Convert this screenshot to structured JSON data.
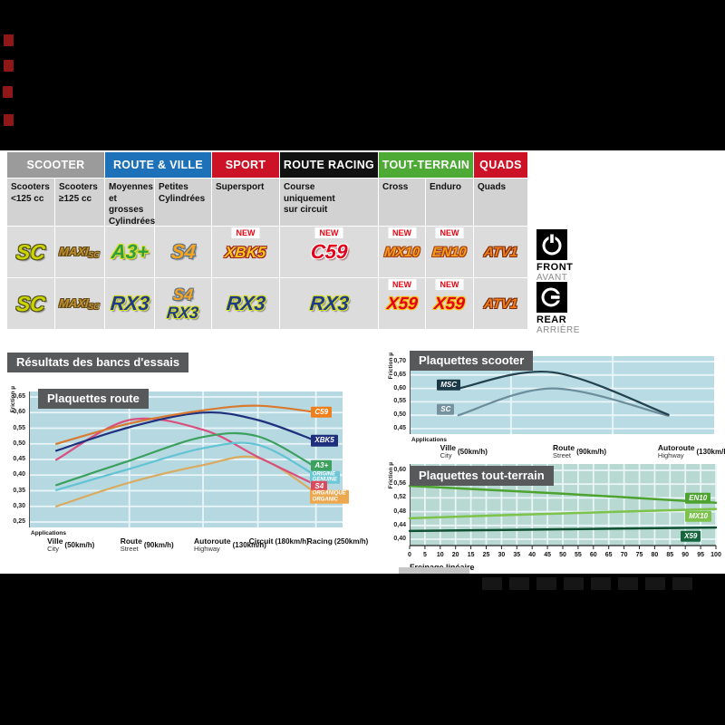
{
  "new_badge": "NEW",
  "section_title": "Résultats des bancs d'essais",
  "front_rear": {
    "front": "FRONT",
    "front_fr": "AVANT",
    "rear": "REAR",
    "rear_fr": "ARRIÈRE"
  },
  "table": {
    "groups": [
      {
        "label": "SCOOTER",
        "color": "#9b9b9b",
        "span": 2
      },
      {
        "label": "ROUTE & VILLE",
        "color": "#1d71b8",
        "span": 2
      },
      {
        "label": "SPORT",
        "color": "#cc1226",
        "span": 1
      },
      {
        "label": "ROUTE RACING",
        "color": "#111111",
        "span": 1
      },
      {
        "label": "TOUT-TERRAIN",
        "color": "#4caa35",
        "span": 2
      },
      {
        "label": "QUADS",
        "color": "#cc1226",
        "span": 1
      }
    ],
    "subheaders": [
      [
        "Scooters",
        "<125 cc"
      ],
      [
        "Scooters",
        "≥125 cc"
      ],
      [
        "Moyennes",
        "et grosses",
        "Cylindrées"
      ],
      [
        "Petites",
        "Cylindrées"
      ],
      [
        "Supersport"
      ],
      [
        "Course",
        "uniquement",
        "sur circuit"
      ],
      [
        "Cross"
      ],
      [
        "Enduro"
      ],
      [
        "Quads"
      ]
    ],
    "rows": [
      {
        "side": "front",
        "cells": [
          {
            "new": false,
            "products": [
              {
                "label": "SC",
                "style": "sc"
              }
            ]
          },
          {
            "new": false,
            "products": [
              {
                "label": "MAXI-SC",
                "style": "maxisc"
              }
            ]
          },
          {
            "new": false,
            "products": [
              {
                "label": "A3+",
                "style": "a3"
              }
            ]
          },
          {
            "new": false,
            "products": [
              {
                "label": "S4",
                "style": "s4"
              }
            ]
          },
          {
            "new": true,
            "products": [
              {
                "label": "XBK5",
                "style": "xbk5"
              }
            ]
          },
          {
            "new": true,
            "products": [
              {
                "label": "C59",
                "style": "c59"
              }
            ]
          },
          {
            "new": true,
            "products": [
              {
                "label": "MX10",
                "style": "mx10"
              }
            ]
          },
          {
            "new": true,
            "products": [
              {
                "label": "EN10",
                "style": "en10"
              }
            ]
          },
          {
            "new": false,
            "products": [
              {
                "label": "ATV1",
                "style": "atv1"
              }
            ]
          }
        ]
      },
      {
        "side": "rear",
        "cells": [
          {
            "new": false,
            "products": [
              {
                "label": "SC",
                "style": "sc"
              }
            ]
          },
          {
            "new": false,
            "products": [
              {
                "label": "MAXI-SC",
                "style": "maxisc"
              }
            ]
          },
          {
            "new": false,
            "products": [
              {
                "label": "RX3",
                "style": "rx3"
              }
            ]
          },
          {
            "new": false,
            "products": [
              {
                "label": "S4",
                "style": "s4"
              },
              {
                "label": "RX3",
                "style": "rx3"
              }
            ]
          },
          {
            "new": false,
            "products": [
              {
                "label": "RX3",
                "style": "rx3"
              }
            ]
          },
          {
            "new": false,
            "products": [
              {
                "label": "RX3",
                "style": "rx3"
              }
            ]
          },
          {
            "new": true,
            "products": [
              {
                "label": "X59",
                "style": "x59"
              }
            ]
          },
          {
            "new": true,
            "products": [
              {
                "label": "X59",
                "style": "x59"
              }
            ]
          },
          {
            "new": false,
            "products": [
              {
                "label": "ATV1",
                "style": "atv1"
              }
            ]
          }
        ]
      }
    ]
  },
  "chart_data": [
    {
      "type": "line",
      "title": "Plaquettes route",
      "ylabel": "Friction µ",
      "xlabel_caption": "Applications",
      "bg": "#b6d9e1",
      "ylim": [
        0.25,
        0.65
      ],
      "ytick_labels": [
        "0,65",
        "0,60",
        "0,55",
        "0,50",
        "0,45",
        "0,40",
        "0,35",
        "0,30",
        "0,25"
      ],
      "vgrid_x": [
        0.32,
        0.555,
        0.73,
        0.915
      ],
      "x_categories": [
        {
          "fr": "Ville",
          "en": "City",
          "speed": "(50km/h)",
          "x": 0.087
        },
        {
          "fr": "Route",
          "en": "Street",
          "speed": "(90km/h)",
          "x": 0.32
        },
        {
          "fr": "Autoroute",
          "en": "Highway",
          "speed": "(130km/h)",
          "x": 0.555
        },
        {
          "fr": "Circuit",
          "en": "",
          "speed": "(180km/h)",
          "x": 0.73
        },
        {
          "fr": "Racing",
          "en": "",
          "speed": "(250km/h)",
          "x": 0.915
        }
      ],
      "series": [
        {
          "name": "C59",
          "color": "#d8792f",
          "legend_bg": "#ef7f1a",
          "legend": [
            "C59"
          ],
          "legend_pos": [
            0.9,
            0.601
          ],
          "x": [
            0.087,
            0.32,
            0.555,
            0.73,
            0.915
          ],
          "y": [
            0.5,
            0.565,
            0.607,
            0.622,
            0.601
          ]
        },
        {
          "name": "XBK5",
          "color": "#1e2f7d",
          "legend_bg": "#1e2f7d",
          "legend": [
            "XBK5"
          ],
          "legend_pos": [
            0.9,
            0.51
          ],
          "x": [
            0.087,
            0.32,
            0.555,
            0.73,
            0.915
          ],
          "y": [
            0.478,
            0.553,
            0.6,
            0.576,
            0.51
          ]
        },
        {
          "name": "A3+",
          "color": "#3ca05e",
          "legend_bg": "#3ca05e",
          "legend": [
            "A3+"
          ],
          "legend_pos": [
            0.9,
            0.43
          ],
          "x": [
            0.087,
            0.32,
            0.555,
            0.73,
            0.915
          ],
          "y": [
            0.368,
            0.446,
            0.522,
            0.524,
            0.425
          ]
        },
        {
          "name": "ORIGINE",
          "color": "#62c3d5",
          "legend_bg": "#6cc7d7",
          "legend": [
            "ORIGINE",
            "GENUINE"
          ],
          "legend_pos": [
            0.895,
            0.393
          ],
          "x": [
            0.087,
            0.32,
            0.555,
            0.73,
            0.915
          ],
          "y": [
            0.352,
            0.42,
            0.486,
            0.497,
            0.398
          ]
        },
        {
          "name": "S4",
          "color": "#d94f7e",
          "legend_bg": "#dd4a5e",
          "legend": [
            "S4"
          ],
          "legend_pos": [
            0.9,
            0.363
          ],
          "x": [
            0.087,
            0.32,
            0.555,
            0.73,
            0.915
          ],
          "y": [
            0.449,
            0.576,
            0.545,
            0.458,
            0.368
          ]
        },
        {
          "name": "ORGANIQUE",
          "color": "#d9aa5f",
          "legend_bg": "#eda84f",
          "legend": [
            "ORGANIQUE",
            "ORGANIC"
          ],
          "legend_pos": [
            0.895,
            0.33
          ],
          "x": [
            0.087,
            0.32,
            0.555,
            0.73,
            0.915
          ],
          "y": [
            0.3,
            0.376,
            0.432,
            0.455,
            0.343
          ]
        }
      ]
    },
    {
      "type": "line",
      "title": "Plaquettes scooter",
      "ylabel": "Friction µ",
      "xlabel_caption": "Applications",
      "bg": "#b9dce4",
      "ylim": [
        0.45,
        0.7
      ],
      "ytick_labels": [
        "0,70",
        "0,65",
        "0,60",
        "0,55",
        "0,50",
        "0,45"
      ],
      "vgrid_x": [
        0.333,
        0.667
      ],
      "x_categories": [
        {
          "fr": "Ville",
          "en": "City",
          "speed": "(50km/h)",
          "x": 0.13
        },
        {
          "fr": "Route",
          "en": "Street",
          "speed": "(90km/h)",
          "x": 0.5
        },
        {
          "fr": "Autoroute",
          "en": "Highway",
          "speed": "(130km/h)",
          "x": 0.845
        }
      ],
      "series": [
        {
          "name": "MSC",
          "color": "#23414e",
          "legend_bg": "#1c3947",
          "legend": [
            "MSC"
          ],
          "legend_pos": [
            0.09,
            0.612
          ],
          "x": [
            0.16,
            0.47,
            0.85
          ],
          "y": [
            0.6,
            0.66,
            0.502
          ]
        },
        {
          "name": "SC",
          "color": "#6c8e9c",
          "legend_bg": "#74939e",
          "legend": [
            "SC"
          ],
          "legend_pos": [
            0.09,
            0.522
          ],
          "x": [
            0.16,
            0.47,
            0.85
          ],
          "y": [
            0.5,
            0.6,
            0.498
          ]
        }
      ]
    },
    {
      "type": "line",
      "title": "Plaquettes tout-terrain",
      "ylabel": "Friction µ",
      "xlabel": "Freinage linéaire",
      "bg": "#b8d8d2",
      "ylim": [
        0.4,
        0.6
      ],
      "ytick_labels": [
        "0,60",
        "0,56",
        "0,52",
        "0,48",
        "0,44",
        "0,40"
      ],
      "xlim": [
        0,
        100
      ],
      "xtick_labels": [
        "0",
        "5",
        "10",
        "20",
        "15",
        "25",
        "30",
        "35",
        "40",
        "45",
        "50",
        "55",
        "60",
        "65",
        "70",
        "75",
        "80",
        "85",
        "90",
        "95",
        "100"
      ],
      "series": [
        {
          "name": "EN10",
          "color": "#4da32f",
          "legend_bg": "#4da32f",
          "legend": [
            "EN10"
          ],
          "legend_pos": [
            0.9,
            0.519
          ],
          "x": [
            0,
            50,
            100
          ],
          "y": [
            0.555,
            0.532,
            0.506
          ]
        },
        {
          "name": "MX10",
          "color": "#7cc24b",
          "legend_bg": "#7cc24b",
          "legend": [
            "MX10"
          ],
          "legend_pos": [
            0.9,
            0.467
          ],
          "x": [
            0,
            50,
            100
          ],
          "y": [
            0.461,
            0.475,
            0.488
          ]
        },
        {
          "name": "X59",
          "color": "#0f5132",
          "legend_bg": "#15663f",
          "legend": [
            "X59"
          ],
          "legend_pos": [
            0.885,
            0.409
          ],
          "x": [
            0,
            50,
            100
          ],
          "y": [
            0.424,
            0.429,
            0.434
          ]
        }
      ]
    }
  ]
}
